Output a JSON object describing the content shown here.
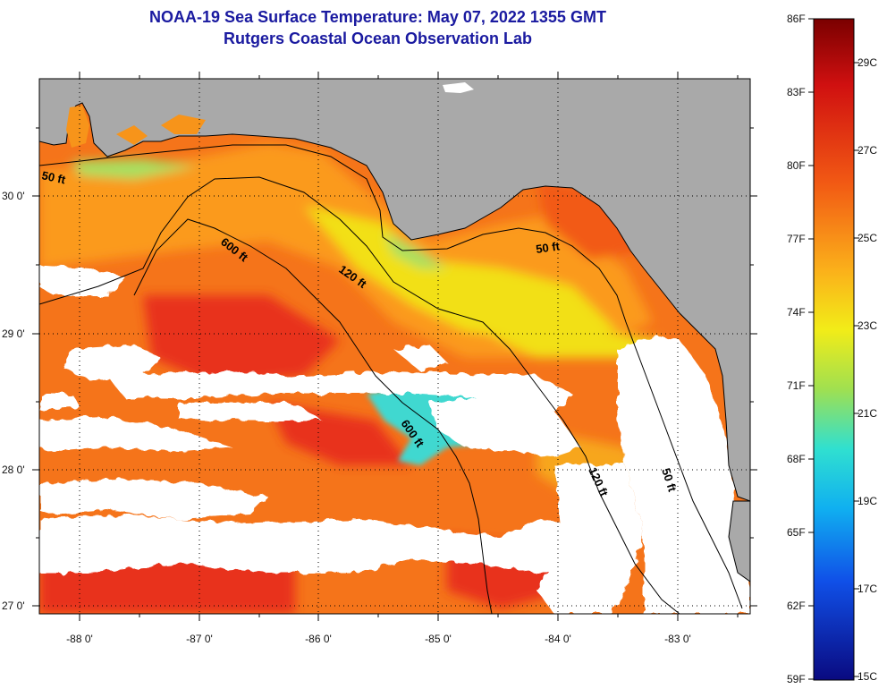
{
  "header": {
    "title": "NOAA-19 Sea Surface Temperature:  May 07, 2022 1355 GMT",
    "subtitle": "Rutgers Coastal Ocean Observation Lab"
  },
  "map": {
    "lat_ticks": [
      "30 0'",
      "29 0'",
      "28 0'",
      "27 0'"
    ],
    "lon_ticks": [
      "-88 0'",
      "-87 0'",
      "-86 0'",
      "-85 0'",
      "-84 0'",
      "-83 0'"
    ],
    "contour_labels": [
      "50 ft",
      "600 ft",
      "120 ft",
      "50 ft",
      "600 ft",
      "120 ft",
      "50 ft"
    ],
    "colors": {
      "land": "#a9a9a9",
      "cloud": "#ffffff",
      "warm": "#f25a14",
      "hot": "#e8301a",
      "orange": "#fb9a1a",
      "yellow": "#f2e018",
      "green": "#a8e060",
      "cyan": "#30e0e0"
    }
  },
  "colorbar": {
    "fahrenheit": [
      "86F",
      "83F",
      "80F",
      "77F",
      "74F",
      "71F",
      "68F",
      "65F",
      "62F",
      "59F"
    ],
    "celsius": [
      "29C",
      "27C",
      "25C",
      "23C",
      "21C",
      "19C",
      "17C",
      "15C"
    ]
  }
}
